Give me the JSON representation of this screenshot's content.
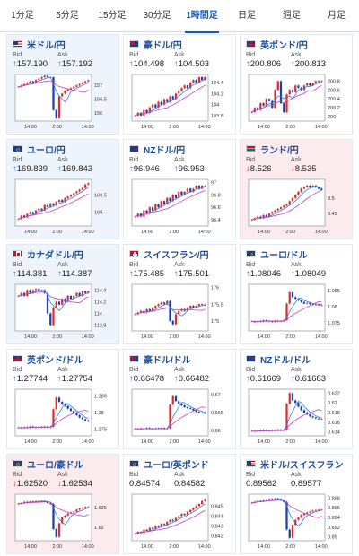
{
  "tabs": [
    {
      "label": "1分足",
      "active": false
    },
    {
      "label": "5分足",
      "active": false
    },
    {
      "label": "15分足",
      "active": false
    },
    {
      "label": "30分足",
      "active": false
    },
    {
      "label": "1時間足",
      "active": true
    },
    {
      "label": "日足",
      "active": false
    },
    {
      "label": "週足",
      "active": false
    },
    {
      "label": "月足",
      "active": false
    }
  ],
  "labels": {
    "bid": "Bid",
    "ask": "Ask"
  },
  "colors": {
    "up_bg": "#eef4fb",
    "down_bg": "#fcebec",
    "candle_up": "#d83030",
    "candle_down": "#1f3fa8",
    "ma1": "#2f7de1",
    "ma2": "#c543c0",
    "title": "#1a4fa0"
  },
  "cards": [
    {
      "id": "usdjpy",
      "flag": "us-flag",
      "title": "米ドル/円",
      "dir": "up",
      "bg": "up",
      "bid": "157.190",
      "ask": "157.192",
      "chart_data": {
        "type": "candlestick",
        "x_ticks": [
          "14:00",
          "2:00",
          "14:00"
        ],
        "y_ticks": [
          "157",
          "156.5",
          "156"
        ],
        "ylim": [
          155.7,
          157.4
        ],
        "close": [
          156.95,
          157.0,
          157.05,
          157.1,
          157.15,
          157.1,
          157.2,
          157.25,
          157.3,
          157.35,
          157.3,
          157.3,
          156.1,
          155.8,
          156.6,
          156.7,
          156.8,
          156.85,
          156.9,
          156.95,
          157.0,
          157.05,
          157.1,
          157.15,
          157.19
        ]
      }
    },
    {
      "id": "audjpy",
      "flag": "au-flag",
      "title": "豪ドル/円",
      "dir": "up",
      "bg": "white",
      "bid": "104.498",
      "ask": "104.503",
      "chart_data": {
        "type": "candlestick",
        "x_ticks": [
          "14:00",
          "2:00",
          "14:00"
        ],
        "y_ticks": [
          "104.4",
          "104.2",
          "104",
          "103.8"
        ],
        "ylim": [
          103.7,
          104.55
        ],
        "close": [
          103.8,
          103.85,
          103.8,
          103.9,
          103.85,
          103.95,
          104.0,
          103.95,
          104.05,
          104.0,
          104.1,
          104.05,
          104.15,
          104.1,
          104.2,
          104.25,
          104.3,
          104.35,
          104.3,
          104.4,
          104.45,
          104.4,
          104.5,
          104.45,
          104.5
        ]
      }
    },
    {
      "id": "gbpjpy",
      "flag": "uk-flag",
      "title": "英ポンド/円",
      "dir": "up",
      "bg": "white",
      "bid": "200.806",
      "ask": "200.813",
      "chart_data": {
        "type": "candlestick",
        "x_ticks": [
          "14:00",
          "2:00",
          "14:00"
        ],
        "y_ticks": [
          "200.8",
          "200.6",
          "200.4",
          "200.2",
          "200"
        ],
        "ylim": [
          199.9,
          200.95
        ],
        "close": [
          200.1,
          200.2,
          200.15,
          200.3,
          200.25,
          200.4,
          200.35,
          200.2,
          200.6,
          200.8,
          200.3,
          200.1,
          200.5,
          200.6,
          200.55,
          200.7,
          200.65,
          200.6,
          200.7,
          200.75,
          200.7,
          200.75,
          200.8,
          200.78,
          200.8
        ]
      }
    },
    {
      "id": "eurjpy",
      "flag": "eu-flag",
      "title": "ユーロ/円",
      "dir": "up",
      "bg": "up",
      "bid": "169.839",
      "ask": "169.843",
      "chart_data": {
        "type": "candlestick",
        "x_ticks": [
          "14:00",
          "2:00",
          "14:00"
        ],
        "y_ticks": [
          "169.5",
          "169"
        ],
        "ylim": [
          168.6,
          169.95
        ],
        "close": [
          168.8,
          168.9,
          168.85,
          168.95,
          169.0,
          168.95,
          169.05,
          169.1,
          169.05,
          169.2,
          169.15,
          169.25,
          169.2,
          169.3,
          169.35,
          169.3,
          169.4,
          169.45,
          169.5,
          169.55,
          169.6,
          169.65,
          169.7,
          169.8,
          169.84
        ]
      }
    },
    {
      "id": "nzdjpy",
      "flag": "nz-flag",
      "title": "NZドル/円",
      "dir": "up",
      "bg": "white",
      "bid": "96.946",
      "ask": "96.953",
      "chart_data": {
        "type": "candlestick",
        "x_ticks": [
          "14:00",
          "2:00",
          "14:00"
        ],
        "y_ticks": [
          "97",
          "96.8",
          "96.6",
          "96.4"
        ],
        "ylim": [
          96.3,
          97.05
        ],
        "close": [
          96.45,
          96.5,
          96.45,
          96.55,
          96.5,
          96.6,
          96.55,
          96.65,
          96.6,
          96.7,
          96.65,
          96.75,
          96.7,
          96.8,
          96.75,
          96.85,
          96.8,
          96.85,
          96.9,
          96.85,
          96.9,
          96.95,
          96.9,
          96.95,
          96.95
        ]
      }
    },
    {
      "id": "zarjpy",
      "flag": "za-flag",
      "title": "ランド/円",
      "dir": "down",
      "bg": "down",
      "bid": "8.526",
      "ask": "8.535",
      "chart_data": {
        "type": "candlestick",
        "x_ticks": [
          "14:00",
          "2:00",
          "14:00"
        ],
        "y_ticks": [
          "8.5",
          "8.45"
        ],
        "ylim": [
          8.41,
          8.56
        ],
        "close": [
          8.43,
          8.435,
          8.44,
          8.435,
          8.445,
          8.44,
          8.45,
          8.455,
          8.46,
          8.465,
          8.47,
          8.475,
          8.48,
          8.49,
          8.5,
          8.51,
          8.52,
          8.53,
          8.535,
          8.54,
          8.535,
          8.54,
          8.535,
          8.53,
          8.526
        ]
      }
    },
    {
      "id": "cadjpy",
      "flag": "ca-flag",
      "title": "カナダドル/円",
      "dir": "up",
      "bg": "up",
      "bid": "114.381",
      "ask": "114.387",
      "chart_data": {
        "type": "candlestick",
        "x_ticks": [
          "14:00",
          "2:00",
          "14:00"
        ],
        "y_ticks": [
          "114.4",
          "114.2",
          "114",
          "113.8"
        ],
        "ylim": [
          113.7,
          114.5
        ],
        "close": [
          114.3,
          114.35,
          114.3,
          114.4,
          114.35,
          114.4,
          114.42,
          114.38,
          114.4,
          114.35,
          114.0,
          113.8,
          114.1,
          114.2,
          114.15,
          114.25,
          114.2,
          114.3,
          114.25,
          114.3,
          114.35,
          114.3,
          114.38,
          114.35,
          114.38
        ]
      }
    },
    {
      "id": "chfjpy",
      "flag": "ch-flag",
      "title": "スイスフラン/円",
      "dir": "up",
      "bg": "white",
      "bid": "175.485",
      "ask": "175.501",
      "chart_data": {
        "type": "candlestick",
        "x_ticks": [
          "14:00",
          "2:00",
          "14:00"
        ],
        "y_ticks": [
          "176",
          "175.5",
          "175"
        ],
        "ylim": [
          174.7,
          176.1
        ],
        "close": [
          175.2,
          175.25,
          175.3,
          175.25,
          175.35,
          175.3,
          175.4,
          175.45,
          175.5,
          175.55,
          175.5,
          175.6,
          175.0,
          174.9,
          175.2,
          175.3,
          175.35,
          175.3,
          175.4,
          175.45,
          175.4,
          175.45,
          175.5,
          175.48,
          175.49
        ]
      }
    },
    {
      "id": "eurusd",
      "flag": "eu-flag",
      "title": "ユーロ/ドル",
      "dir": "up",
      "bg": "white",
      "bid": "1.08046",
      "ask": "1.08049",
      "chart_data": {
        "type": "candlestick",
        "x_ticks": [
          "14:00",
          "2:00",
          "14:00"
        ],
        "y_ticks": [
          "1.085",
          "1.08",
          "1.075"
        ],
        "ylim": [
          1.0725,
          1.087
        ],
        "close": [
          1.0755,
          1.0752,
          1.0756,
          1.0754,
          1.0758,
          1.0756,
          1.0755,
          1.0753,
          1.0757,
          1.0755,
          1.0756,
          1.0758,
          1.081,
          1.0845,
          1.083,
          1.0825,
          1.082,
          1.0815,
          1.081,
          1.0812,
          1.0808,
          1.0806,
          1.0807,
          1.0805,
          1.0805
        ]
      }
    },
    {
      "id": "gbpusd",
      "flag": "uk-flag",
      "title": "英ポンド/ドル",
      "dir": "up",
      "bg": "white",
      "bid": "1.27744",
      "ask": "1.27754",
      "chart_data": {
        "type": "candlestick",
        "x_ticks": [
          "14:00",
          "2:00",
          "14:00"
        ],
        "y_ticks": [
          "1.285",
          "1.28",
          "1.275"
        ],
        "ylim": [
          1.273,
          1.287
        ],
        "close": [
          1.2755,
          1.2753,
          1.2756,
          1.2754,
          1.2758,
          1.2756,
          1.2755,
          1.2757,
          1.2756,
          1.2758,
          1.2755,
          1.2757,
          1.281,
          1.2845,
          1.2832,
          1.2825,
          1.282,
          1.2812,
          1.2805,
          1.2798,
          1.2792,
          1.2785,
          1.278,
          1.2776,
          1.2774
        ]
      }
    },
    {
      "id": "audusd",
      "flag": "au-flag",
      "title": "豪ドル/ドル",
      "dir": "up",
      "bg": "white",
      "bid": "0.66478",
      "ask": "0.66482",
      "chart_data": {
        "type": "candlestick",
        "x_ticks": [
          "14:00",
          "2:00",
          "14:00"
        ],
        "y_ticks": [
          "0.67",
          "0.665",
          "0.66"
        ],
        "ylim": [
          0.6585,
          0.6715
        ],
        "close": [
          0.6605,
          0.6603,
          0.6606,
          0.6604,
          0.6607,
          0.6605,
          0.6604,
          0.6606,
          0.6605,
          0.6607,
          0.6604,
          0.6606,
          0.6672,
          0.6695,
          0.6682,
          0.6675,
          0.667,
          0.6665,
          0.6662,
          0.666,
          0.6656,
          0.6652,
          0.665,
          0.6649,
          0.6648
        ]
      }
    },
    {
      "id": "nzdusd",
      "flag": "nz-flag",
      "title": "NZドル/ドル",
      "dir": "up",
      "bg": "white",
      "bid": "0.61669",
      "ask": "0.61683",
      "chart_data": {
        "type": "candlestick",
        "x_ticks": [
          "14:00",
          "2:00",
          "14:00"
        ],
        "y_ticks": [
          "0.622",
          "0.62",
          "0.618",
          "0.616",
          "0.614"
        ],
        "ylim": [
          0.6132,
          0.6228
        ],
        "close": [
          0.6142,
          0.6141,
          0.6143,
          0.6142,
          0.6144,
          0.6143,
          0.6142,
          0.6144,
          0.6143,
          0.6145,
          0.6143,
          0.6144,
          0.6198,
          0.622,
          0.6205,
          0.62,
          0.6192,
          0.6185,
          0.618,
          0.6176,
          0.6172,
          0.617,
          0.6168,
          0.6167,
          0.6167
        ]
      }
    },
    {
      "id": "euraud",
      "flag": "eu-flag",
      "title": "ユーロ/豪ドル",
      "dir": "down",
      "bg": "down",
      "bid": "1.62520",
      "ask": "1.62534",
      "chart_data": {
        "type": "candlestick",
        "x_ticks": [
          "14:00",
          "2:00",
          "14:00"
        ],
        "y_ticks": [
          "1.625",
          "1.62"
        ],
        "ylim": [
          1.6165,
          1.6285
        ],
        "close": [
          1.626,
          1.6262,
          1.6265,
          1.6263,
          1.6266,
          1.6264,
          1.6267,
          1.6265,
          1.6268,
          1.6266,
          1.6262,
          1.626,
          1.6195,
          1.6175,
          1.621,
          1.6225,
          1.623,
          1.6235,
          1.6238,
          1.624,
          1.6245,
          1.6248,
          1.625,
          1.6252,
          1.6252
        ]
      }
    },
    {
      "id": "eurgbp",
      "flag": "eu-flag",
      "title": "ユーロ/英ポンド",
      "dir": "",
      "bg": "white",
      "bid": "0.84574",
      "ask": "0.84582",
      "chart_data": {
        "type": "candlestick",
        "x_ticks": [
          "14:00",
          "2:00",
          "14:00"
        ],
        "y_ticks": [
          "0.845",
          "0.844",
          "0.843",
          "0.842"
        ],
        "ylim": [
          0.8415,
          0.8462
        ],
        "close": [
          0.8422,
          0.8424,
          0.8423,
          0.8426,
          0.8425,
          0.8428,
          0.8427,
          0.843,
          0.8429,
          0.8432,
          0.8431,
          0.8434,
          0.8436,
          0.8435,
          0.8438,
          0.844,
          0.8442,
          0.8441,
          0.8444,
          0.8446,
          0.8448,
          0.845,
          0.8452,
          0.8455,
          0.8457
        ]
      }
    },
    {
      "id": "usdchf",
      "flag": "us-flag",
      "title": "米ドル/スイスフラン",
      "dir": "",
      "bg": "white",
      "bid": "0.89562",
      "ask": "0.89577",
      "chart_data": {
        "type": "candlestick",
        "x_ticks": [
          "14:00",
          "2:00",
          "14:00"
        ],
        "y_ticks": [
          "0.898",
          "0.896",
          "0.894",
          "0.892",
          "0.89"
        ],
        "ylim": [
          0.8892,
          0.8988
        ],
        "close": [
          0.897,
          0.8972,
          0.8974,
          0.8973,
          0.8976,
          0.8975,
          0.8978,
          0.8977,
          0.8979,
          0.8978,
          0.8975,
          0.8972,
          0.8915,
          0.8898,
          0.8925,
          0.8935,
          0.894,
          0.8945,
          0.8948,
          0.895,
          0.8952,
          0.8954,
          0.8955,
          0.8956,
          0.8956
        ]
      }
    }
  ]
}
